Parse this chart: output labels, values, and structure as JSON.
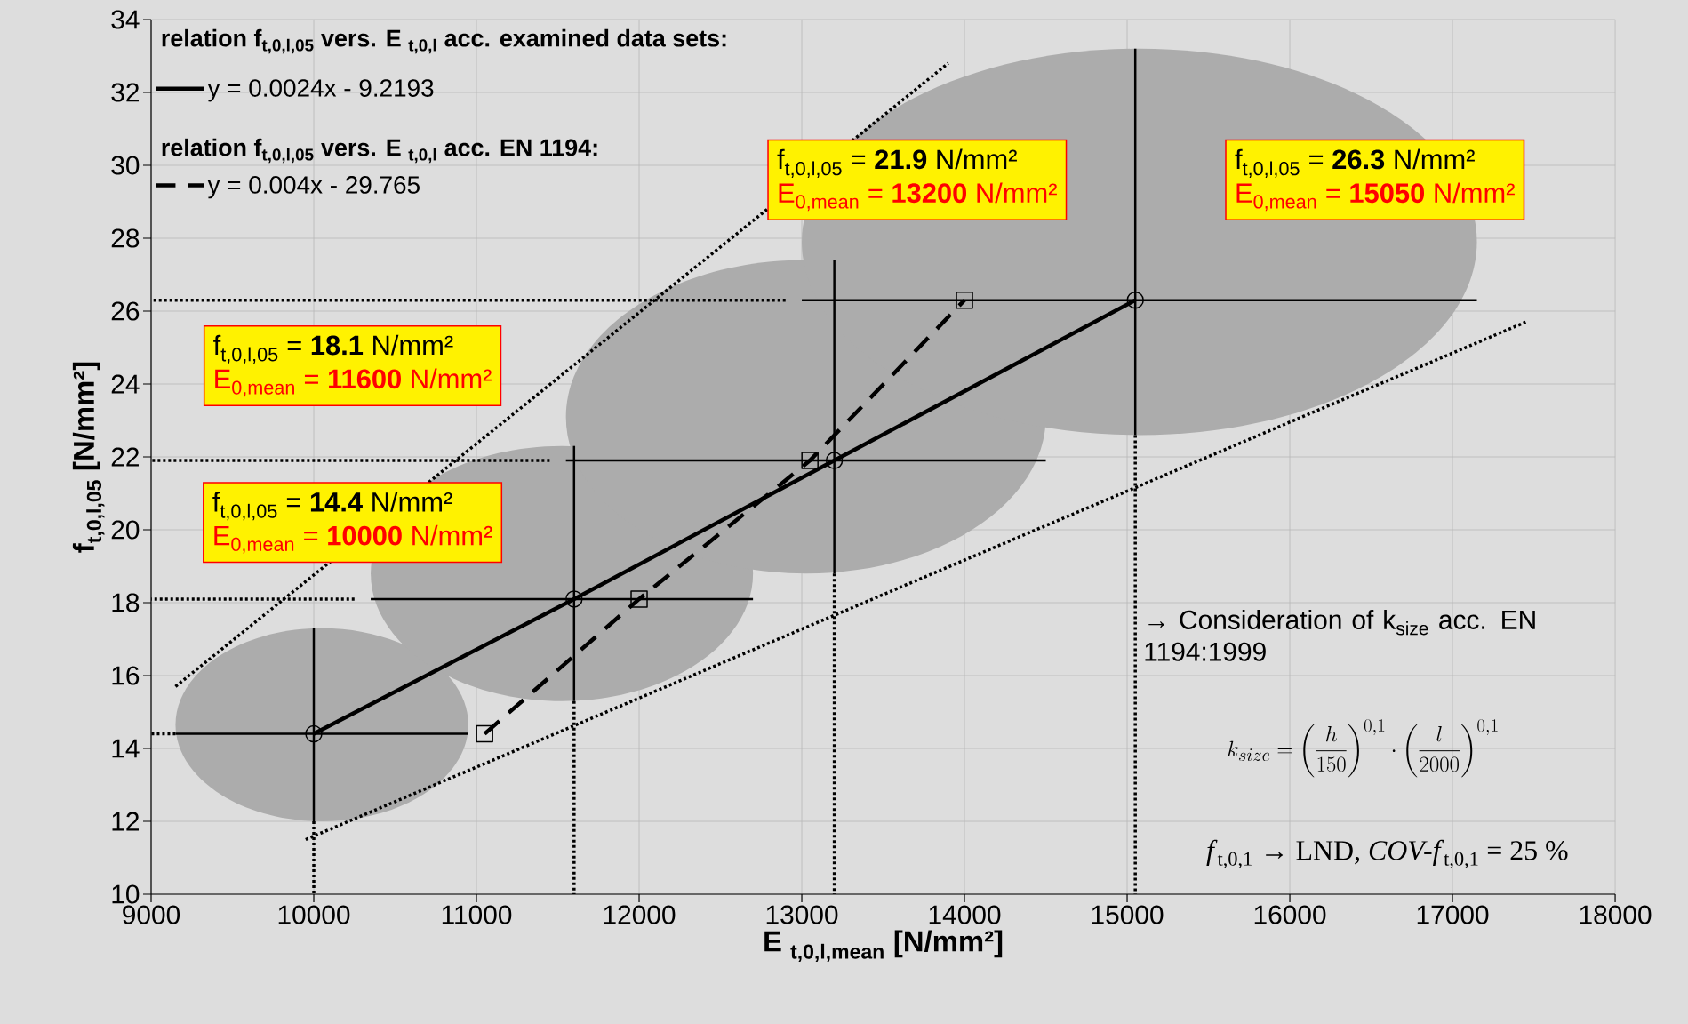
{
  "chart_data": {
    "type": "line",
    "xlabel": "E $_{t,0,l,mean}$ [N/mm²]",
    "ylabel": "f$_{t,0,l,05}$ [N/mm²]",
    "xlim": [
      9000,
      18000
    ],
    "ylim": [
      10,
      34
    ],
    "xticks": [
      9000,
      10000,
      11000,
      12000,
      13000,
      14000,
      15000,
      16000,
      17000,
      18000
    ],
    "yticks": [
      10,
      12,
      14,
      16,
      18,
      20,
      22,
      24,
      26,
      28,
      30,
      32,
      34
    ],
    "grid": true,
    "legend": "top left",
    "series": [
      {
        "name": "y = 0.0024x - 9.2193",
        "color": "#000000",
        "line_style": "solid",
        "marker": "circle",
        "x": [
          10000,
          11600,
          13200,
          15050
        ],
        "values": [
          14.4,
          18.1,
          21.9,
          26.3
        ],
        "errors": [
          [
            12.0,
            17.3
          ],
          [
            15.3,
            22.3
          ],
          [
            18.8,
            27.4
          ],
          [
            22.6,
            33.2
          ]
        ],
        "xerrors": [
          [
            9150,
            10950
          ],
          [
            10350,
            12700
          ],
          [
            11550,
            14500
          ],
          [
            13000,
            17150
          ]
        ]
      },
      {
        "name": "y = 0.004x - 29.765",
        "color": "#000000",
        "line_style": "dashed",
        "marker": "square",
        "x": [
          11050,
          12000,
          13050,
          14000
        ],
        "values": [
          14.4,
          18.1,
          21.9,
          26.3
        ]
      },
      {
        "color": "#000000",
        "line_style": "dotted",
        "marker": "none",
        "x": [
          9150,
          13900
        ],
        "values": [
          15.7,
          32.8
        ]
      },
      {
        "color": "#000000",
        "line_style": "dotted",
        "marker": "none",
        "x": [
          9950,
          17450
        ],
        "values": [
          11.5,
          25.7
        ]
      },
      {
        "color": "#000000",
        "line_style": "dotted",
        "marker": "none",
        "x": [
          10000,
          10000
        ],
        "values": [
          12.0,
          10
        ]
      },
      {
        "color": "#000000",
        "line_style": "dotted",
        "marker": "none",
        "x": [
          11600,
          11600
        ],
        "values": [
          15.3,
          10
        ]
      },
      {
        "color": "#000000",
        "line_style": "dotted",
        "marker": "none",
        "x": [
          13200,
          13200
        ],
        "values": [
          18.8,
          10
        ]
      },
      {
        "color": "#000000",
        "line_style": "dotted",
        "marker": "none",
        "x": [
          15050,
          15050
        ],
        "values": [
          22.6,
          10
        ]
      },
      {
        "color": "#000000",
        "line_style": "dotted",
        "marker": "none",
        "x": [
          9150,
          9000
        ],
        "values": [
          14.4,
          14.4
        ]
      },
      {
        "color": "#000000",
        "line_style": "dotted",
        "marker": "none",
        "x": [
          10250,
          9000
        ],
        "values": [
          18.1,
          18.1
        ]
      },
      {
        "color": "#000000",
        "line_style": "dotted",
        "marker": "none",
        "x": [
          11450,
          9000
        ],
        "values": [
          21.9,
          21.9
        ]
      },
      {
        "color": "#000000",
        "line_style": "dotted",
        "marker": "none",
        "x": [
          12900,
          9000
        ],
        "values": [
          26.3,
          26.3
        ]
      }
    ],
    "annotations": [
      "relation f$_{t,0,l,05}$ vers. E $_{t,0,l}$ acc. examined data sets:",
      "relation f$_{t,0,l,05}$ vers. E $_{t,0,l}$ acc. EN 1194:",
      "f$_{t,0,l,05}$ = **14.4** N/mm²",
      "E$_{0,mean}$ = **10000** N/mm²",
      "f$_{t,0,l,05}$ = **18.1** N/mm²",
      "E$_{0,mean}$ = **11600** N/mm²",
      "f$_{t,0,l,05}$ = **21.9** N/mm²",
      "E$_{0,mean}$ = **13200** N/mm²",
      "f$_{t,0,l,05}$ = **26.3** N/mm²",
      "E$_{0,mean}$ = **15050** N/mm²",
      "→ Consideration of k$_{size}$ acc. EN 1194:1999",
      "k_{size}=\\left(\\frac{h}{150}\\right)^{0,1}\\cdot\\left(\\frac{l}{2000}\\right)^{0,1}",
      "*f*$_{t,0,1}$ → LND, *COV-f*$_{t,0,1}$ = 25 %"
    ]
  }
}
